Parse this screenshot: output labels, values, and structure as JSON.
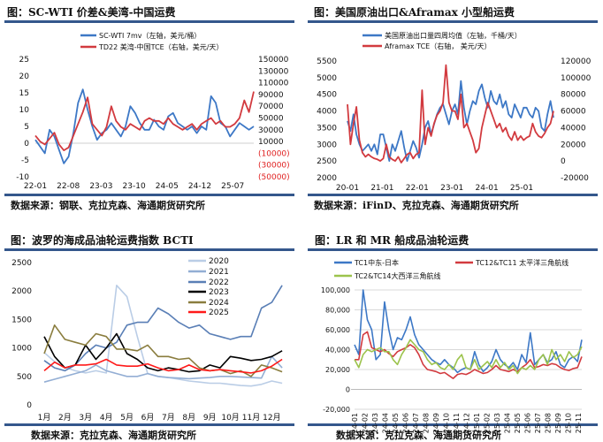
{
  "panels": [
    {
      "title": "图：SC-WTI 价差&美湾-中国运费",
      "source": "数据来源：钢联、克拉克森、海通期货研究所"
    },
    {
      "title": "图：美国原油出口&Aframax 小型船运费",
      "source": "数据来源：iFinD、克拉克森、海通期货研究所"
    },
    {
      "title": "图：波罗的海成品油轮运费指数 BCTI",
      "source": "数据来源：克拉克森、海通期货研究所"
    },
    {
      "title": "图：LR 和 MR 船成品油轮运费",
      "source": "数据来源：克拉克森、海通期货研究所"
    }
  ],
  "chart_data": [
    {
      "type": "line",
      "grid": false,
      "legend": "top",
      "x_ticks": [
        "22-01",
        "22-08",
        "23-03",
        "23-10",
        "24-05",
        "24-12",
        "25-07"
      ],
      "ylim": [
        -10,
        25
      ],
      "y_ticks": [
        "25",
        "20",
        "15",
        "10",
        "5",
        "0",
        "-5",
        "-10"
      ],
      "y2lim": [
        -50000,
        150000
      ],
      "y2_ticks": [
        "150000",
        "130000",
        "110000",
        "90000",
        "70000",
        "50000",
        "30000",
        "10000",
        "(10000)",
        "(30000)",
        "(50000)"
      ],
      "series": [
        {
          "name": "SC-WTI 7mv（左轴，美元/桶）",
          "axis": "left",
          "color": "#3d78c6",
          "values": [
            1,
            -1,
            -3,
            4,
            2,
            -2,
            -6,
            -4,
            3,
            12,
            16,
            10,
            5,
            1,
            3,
            4,
            6,
            4,
            2,
            5,
            11,
            9,
            6,
            4,
            4,
            7,
            5,
            4,
            8,
            9,
            6,
            5,
            4,
            5,
            3,
            5,
            4,
            14,
            12,
            6,
            5,
            2,
            4,
            6,
            5,
            4,
            5
          ]
        },
        {
          "name": "TD22 美湾-中国TCE（右轴，美元/天）",
          "axis": "right",
          "color": "#d23a3f",
          "values": [
            20000,
            10000,
            5000,
            15000,
            25000,
            5000,
            -5000,
            0,
            20000,
            40000,
            60000,
            85000,
            40000,
            30000,
            20000,
            35000,
            70000,
            45000,
            35000,
            30000,
            40000,
            35000,
            30000,
            45000,
            50000,
            45000,
            45000,
            40000,
            50000,
            40000,
            35000,
            30000,
            35000,
            40000,
            30000,
            40000,
            45000,
            50000,
            40000,
            45000,
            35000,
            35000,
            40000,
            50000,
            80000,
            60000,
            95000
          ]
        }
      ]
    },
    {
      "type": "line",
      "grid": false,
      "legend": "top",
      "x_ticks": [
        "20-01",
        "21-01",
        "22-01",
        "23-01",
        "24-01",
        "25-01"
      ],
      "ylim": [
        2000,
        5500
      ],
      "y_ticks": [
        "5500",
        "5000",
        "4500",
        "4000",
        "3500",
        "3000",
        "2500",
        "2000"
      ],
      "y2lim": [
        -20000,
        120000
      ],
      "y2_ticks": [
        "120000",
        "100000",
        "80000",
        "60000",
        "40000",
        "20000",
        "0",
        "-20000"
      ],
      "series": [
        {
          "name": "美国原油出口量四周均值（左轴，千桶/天）",
          "axis": "left",
          "color": "#3d78c6",
          "values": [
            3700,
            3400,
            3900,
            3300,
            3000,
            2800,
            2900,
            3000,
            2800,
            3000,
            2700,
            3300,
            3300,
            2900,
            2500,
            3000,
            2800,
            3100,
            3400,
            2900,
            2500,
            2800,
            3100,
            2900,
            2600,
            3000,
            3500,
            3700,
            3300,
            3600,
            3900,
            4100,
            4200,
            3900,
            3600,
            4000,
            4200,
            3900,
            4900,
            4100,
            3600,
            4000,
            4300,
            4200,
            4600,
            4800,
            4400,
            4100,
            4600,
            4300,
            4200,
            4500,
            4100,
            4300,
            3900,
            3800,
            4200,
            4000,
            3800,
            4100,
            4100,
            3900,
            3800,
            4100,
            4000,
            3500,
            3400,
            3900,
            4300,
            3800
          ]
        },
        {
          "name": "Aframax TCE（右轴， 美元/天）",
          "axis": "right",
          "color": "#d23a3f",
          "values": [
            68000,
            20000,
            45000,
            65000,
            25000,
            10000,
            5000,
            8000,
            5000,
            3000,
            2000,
            0,
            3000,
            20000,
            5000,
            2000,
            0,
            5000,
            -2000,
            3000,
            8000,
            10000,
            3000,
            8000,
            10000,
            85000,
            20000,
            40000,
            30000,
            45000,
            55000,
            60000,
            70000,
            115000,
            70000,
            60000,
            60000,
            50000,
            80000,
            40000,
            45000,
            35000,
            25000,
            10000,
            15000,
            40000,
            55000,
            70000,
            60000,
            50000,
            40000,
            45000,
            35000,
            40000,
            30000,
            25000,
            35000,
            25000,
            30000,
            25000,
            28000,
            30000,
            45000,
            35000,
            30000,
            28000,
            33000,
            40000,
            45000,
            60000
          ]
        }
      ]
    },
    {
      "type": "line",
      "grid": false,
      "legend": "top-right",
      "x_ticks": [
        "1月",
        "2月",
        "3月",
        "4月",
        "5月",
        "6月",
        "7月",
        "8月",
        "9月",
        "10月",
        "11月",
        "12月"
      ],
      "ylim": [
        0,
        2500
      ],
      "y_ticks": [
        "2500",
        "2000",
        "1500",
        "1000",
        "500",
        "0"
      ],
      "series": [
        {
          "name": "2020",
          "color": "#bacde6",
          "values": [
            920,
            760,
            660,
            600,
            560,
            600,
            560,
            2100,
            1900,
            1200,
            550,
            500,
            480,
            450,
            420,
            400,
            380,
            380,
            360,
            340,
            330,
            360,
            420,
            380
          ]
        },
        {
          "name": "2021",
          "color": "#93aed4",
          "values": [
            400,
            450,
            500,
            550,
            600,
            700,
            600,
            550,
            500,
            500,
            550,
            500,
            480,
            470,
            460,
            470,
            480,
            500,
            500,
            490,
            480,
            470,
            850,
            650
          ]
        },
        {
          "name": "2022",
          "color": "#5a7fb6",
          "values": [
            780,
            650,
            600,
            700,
            900,
            1050,
            1000,
            1100,
            1400,
            1450,
            1450,
            1700,
            1600,
            1450,
            1350,
            1400,
            1250,
            1200,
            1150,
            1200,
            1200,
            1700,
            1800,
            2100
          ]
        },
        {
          "name": "2023",
          "color": "#000000",
          "values": [
            1200,
            850,
            650,
            700,
            1050,
            800,
            1000,
            1250,
            900,
            800,
            650,
            600,
            650,
            620,
            580,
            600,
            700,
            650,
            850,
            820,
            780,
            800,
            850,
            950
          ]
        },
        {
          "name": "2024",
          "color": "#8a7d3e",
          "values": [
            900,
            1400,
            1150,
            1100,
            1050,
            1250,
            1200,
            980,
            980,
            950,
            1050,
            850,
            850,
            800,
            820,
            650,
            600,
            620,
            550,
            600,
            500,
            700,
            650,
            580
          ]
        },
        {
          "name": "2025",
          "color": "#ff1a1a",
          "values": [
            600,
            750,
            650,
            700,
            700,
            720,
            800,
            700,
            680,
            680,
            720,
            650,
            600,
            620,
            700,
            620,
            600,
            620,
            600,
            580,
            560,
            600,
            680,
            800
          ]
        }
      ]
    },
    {
      "type": "line",
      "grid": true,
      "legend": "top",
      "x_ticks": [
        "24-01",
        "24-02",
        "24-03",
        "24-04",
        "24-05",
        "24-06",
        "24-07",
        "24-08",
        "24-09",
        "24-10",
        "24-11",
        "24-12",
        "25-01",
        "25-02",
        "25-03",
        "25-04",
        "25-05",
        "25-06",
        "25-07",
        "25-08",
        "25-09",
        "25-10",
        "25-11"
      ],
      "ylim": [
        -20000,
        100000
      ],
      "y_ticks": [
        "100,000",
        "80,000",
        "60,000",
        "40,000",
        "20,000",
        "0",
        "-20,000"
      ],
      "series": [
        {
          "name": "TC1中东-日本",
          "color": "#3d78c6",
          "values": [
            45000,
            35000,
            100000,
            70000,
            60000,
            30000,
            35000,
            88000,
            60000,
            40000,
            52000,
            50000,
            60000,
            73000,
            55000,
            45000,
            40000,
            35000,
            30000,
            27000,
            25000,
            30000,
            25000,
            22000,
            17000,
            20000,
            22000,
            20000,
            38000,
            25000,
            18000,
            22000,
            28000,
            40000,
            30000,
            25000,
            22000,
            27000,
            20000,
            35000,
            27000,
            57000,
            25000,
            30000,
            35000,
            27000,
            30000,
            38000,
            25000,
            22000,
            30000,
            33000,
            28000,
            50000
          ]
        },
        {
          "name": "TC12&TC11 太平洋三角航线",
          "color": "#d23a3f",
          "values": [
            30000,
            30000,
            55000,
            58000,
            42000,
            40000,
            38000,
            40000,
            36000,
            33000,
            38000,
            40000,
            42000,
            45000,
            42000,
            35000,
            25000,
            20000,
            19000,
            18000,
            16000,
            17000,
            14000,
            11000,
            15000,
            16000,
            15000,
            17000,
            20000,
            18000,
            16000,
            17000,
            20000,
            24000,
            20000,
            19000,
            18000,
            20000,
            18000,
            22000,
            25000,
            30000,
            22000,
            23000,
            25000,
            24000,
            26000,
            25000,
            22000,
            20000,
            19000,
            21000,
            22000,
            33000
          ]
        },
        {
          "name": "TC2&TC14大西洋三角航线",
          "color": "#9cc34c",
          "values": [
            30000,
            22000,
            35000,
            40000,
            38000,
            40000,
            42000,
            38000,
            38000,
            30000,
            25000,
            35000,
            42000,
            50000,
            45000,
            40000,
            38000,
            30000,
            25000,
            27000,
            22000,
            20000,
            25000,
            20000,
            30000,
            35000,
            22000,
            20000,
            30000,
            20000,
            24000,
            28000,
            22000,
            30000,
            22000,
            27000,
            20000,
            24000,
            16000,
            22000,
            20000,
            24000,
            20000,
            30000,
            35000,
            25000,
            40000,
            30000,
            35000,
            28000,
            38000,
            32000,
            35000,
            43000
          ]
        }
      ]
    }
  ]
}
